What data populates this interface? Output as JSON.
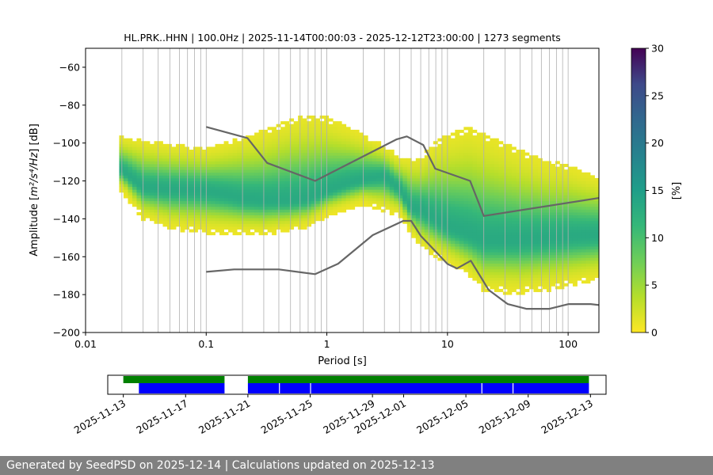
{
  "chart_data": [
    {
      "type": "heatmap",
      "title": "HL.PRK..HHN | 100.0Hz | 2025-11-14T00:00:03 - 2025-12-12T23:00:00 | 1273 segments",
      "xlabel": "Period [s]",
      "ylabel_prefix": "Amplitude [",
      "ylabel_math": "m²/s⁴/Hz",
      "ylabel_suffix": "] [dB]",
      "x_scale": "log",
      "xlim": [
        0.01,
        180
      ],
      "ylim": [
        -200,
        -50
      ],
      "x_ticks": [
        {
          "value": 0.01,
          "label": "0.01"
        },
        {
          "value": 0.1,
          "label": "0.1"
        },
        {
          "value": 1,
          "label": "1"
        },
        {
          "value": 10,
          "label": "10"
        },
        {
          "value": 100,
          "label": "100"
        }
      ],
      "y_ticks": [
        -60,
        -80,
        -100,
        -120,
        -140,
        -160,
        -180,
        -200
      ],
      "grid": "vertical log-period lines",
      "colormap": "viridis_r",
      "colorbar": {
        "label": "[%]",
        "range": [
          0,
          30
        ],
        "ticks": [
          0,
          5,
          10,
          15,
          20,
          25,
          30
        ]
      },
      "psd_density": {
        "mode_curve": {
          "period": [
            0.02,
            0.03,
            0.05,
            0.1,
            0.15,
            0.2,
            0.3,
            0.5,
            0.7,
            1.0,
            1.5,
            2.0,
            3.0,
            4.0,
            5.0,
            6.0,
            8.0,
            10.0,
            15.0,
            20.0,
            40.0,
            70.0,
            100.0,
            180.0
          ],
          "db": [
            -115,
            -124,
            -125,
            -126,
            -128,
            -130,
            -131,
            -131,
            -130,
            -126,
            -122,
            -120,
            -118,
            -125,
            -135,
            -136,
            -141,
            -145,
            -149,
            -152,
            -152,
            -151,
            -150,
            -149
          ]
        },
        "lower_edge": {
          "period": [
            0.02,
            0.03,
            0.05,
            0.1,
            0.3,
            0.5,
            0.7,
            1.0,
            2.0,
            4.0,
            6.0,
            10.0,
            15.0,
            20.0,
            40.0,
            70.0,
            100.0,
            180.0
          ],
          "db": [
            -125,
            -140,
            -145,
            -147,
            -148,
            -146,
            -144,
            -138,
            -132,
            -138,
            -155,
            -163,
            -170,
            -178,
            -179,
            -177,
            -175,
            -172
          ]
        },
        "upper_edge": {
          "period": [
            0.02,
            0.03,
            0.05,
            0.1,
            0.15,
            0.2,
            0.3,
            0.5,
            0.7,
            1.0,
            1.5,
            2.0,
            3.0,
            4.0,
            6.0,
            8.0,
            10.0,
            15.0,
            20.0,
            40.0,
            70.0,
            100.0,
            180.0
          ],
          "db": [
            -97,
            -99,
            -101,
            -103,
            -100,
            -97,
            -94,
            -88,
            -86,
            -87,
            -92,
            -96,
            -102,
            -108,
            -108,
            -100,
            -96,
            -92,
            -95,
            -104,
            -110,
            -112,
            -118
          ]
        }
      },
      "series": [
        {
          "name": "NHNM",
          "color": "#666666",
          "period": [
            0.1,
            0.22,
            0.32,
            0.8,
            3.8,
            4.6,
            6.3,
            7.9,
            15.4,
            20.0,
            180.0
          ],
          "db": [
            -91.5,
            -97.4,
            -110.5,
            -120.0,
            -98.0,
            -96.5,
            -101.0,
            -113.5,
            -120.0,
            -138.5,
            -129.0
          ]
        },
        {
          "name": "NLNM",
          "color": "#666666",
          "period": [
            0.1,
            0.17,
            0.4,
            0.8,
            1.24,
            2.4,
            4.3,
            5.0,
            6.0,
            10.0,
            12.0,
            15.6,
            21.9,
            31.6,
            45.0,
            70.0,
            101.0,
            154.0,
            180.0
          ],
          "db": [
            -168.0,
            -166.7,
            -166.7,
            -169.2,
            -163.7,
            -148.6,
            -141.1,
            -141.1,
            -149.0,
            -163.8,
            -166.2,
            -162.1,
            -177.5,
            -185.0,
            -187.5,
            -187.5,
            -185.0,
            -185.0,
            -185.5
          ]
        }
      ]
    },
    {
      "type": "timeline",
      "xlim": [
        "2025-11-12",
        "2025-12-14"
      ],
      "x_ticks": [
        "2025-11-13",
        "2025-11-17",
        "2025-11-21",
        "2025-11-25",
        "2025-11-29",
        "2025-12-01",
        "2025-12-05",
        "2025-12-09",
        "2025-12-13"
      ],
      "data_available": {
        "color": "#008000",
        "intervals": [
          [
            "2025-11-13",
            "2025-11-19.5"
          ],
          [
            "2025-11-21",
            "2025-12-12.9"
          ]
        ]
      },
      "psd_used": {
        "color": "#0000ff",
        "intervals": [
          [
            "2025-11-14",
            "2025-11-19.5"
          ],
          [
            "2025-11-21",
            "2025-12-12.9"
          ]
        ]
      },
      "gaps": [
        "2025-11-23",
        "2025-11-25",
        "2025-12-06",
        "2025-12-08"
      ]
    }
  ],
  "footer": {
    "text": "Generated by SeedPSD on 2025-12-14 | Calculations updated on 2025-12-13"
  },
  "colors": {
    "model_line": "#666666",
    "grid": "#b0b0b0",
    "footer_bg": "#808080",
    "data_available": "#008000",
    "psd_used": "#0000ff"
  }
}
